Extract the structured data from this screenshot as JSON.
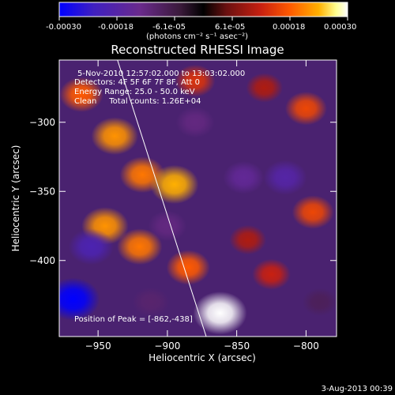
{
  "colorbar": {
    "tick_labels": [
      "-0.00030",
      "-0.00018",
      "-6.1e-05",
      "6.1e-05",
      "0.00018",
      "0.00030"
    ],
    "unit_label": "(photons cm⁻² s⁻¹ asec⁻²)",
    "colors": [
      "#0000ff",
      "#4020c0",
      "#6a2a8c",
      "#3a1a3a",
      "#000000",
      "#6a1010",
      "#c82010",
      "#ff5a00",
      "#ffb000",
      "#ffff90",
      "#ffffff"
    ]
  },
  "chart_data": {
    "type": "heatmap",
    "title": "Reconstructed RHESSI Image",
    "xlabel": "Heliocentric X (arcsec)",
    "ylabel": "Heliocentric Y (arcsec)",
    "xlim": [
      -978,
      -778
    ],
    "ylim": [
      -455,
      -255
    ],
    "x_ticks": [
      -950,
      -900,
      -850,
      -800
    ],
    "y_ticks": [
      -300,
      -350,
      -400
    ],
    "value_range": [
      -0.0003,
      0.0003
    ],
    "annotations": [
      "5-Nov-2010 12:57:02.000 to 13:03:02.000",
      "Detectors: 4F 5F 6F 7F 8F, Att 0",
      "Energy Range: 25.0 - 50.0 keV",
      "Clean     Total counts: 1.26E+04"
    ],
    "peak_label": "Position of Peak = [-862,-438]",
    "peak": {
      "x": -862,
      "y": -438
    },
    "limb_line": [
      [
        -936,
        -255
      ],
      [
        -872,
        -455
      ]
    ],
    "sources": [
      {
        "x": -962,
        "y": -280,
        "value": 0.00018
      },
      {
        "x": -938,
        "y": -310,
        "value": 0.00022
      },
      {
        "x": -918,
        "y": -338,
        "value": 0.0002
      },
      {
        "x": -895,
        "y": -345,
        "value": 0.00024
      },
      {
        "x": -945,
        "y": -375,
        "value": 0.00022
      },
      {
        "x": -920,
        "y": -390,
        "value": 0.0002
      },
      {
        "x": -885,
        "y": -405,
        "value": 0.00018
      },
      {
        "x": -862,
        "y": -438,
        "value": 0.0003
      },
      {
        "x": -842,
        "y": -385,
        "value": 0.0001
      },
      {
        "x": -825,
        "y": -410,
        "value": 0.00012
      },
      {
        "x": -800,
        "y": -290,
        "value": 0.00016
      },
      {
        "x": -795,
        "y": -365,
        "value": 0.00016
      },
      {
        "x": -830,
        "y": -275,
        "value": 0.0001
      },
      {
        "x": -880,
        "y": -270,
        "value": 0.00014
      },
      {
        "x": -968,
        "y": -428,
        "value": -0.0003
      },
      {
        "x": -955,
        "y": -390,
        "value": -0.0002
      },
      {
        "x": -912,
        "y": -430,
        "value": -0.0001
      },
      {
        "x": -845,
        "y": -340,
        "value": -0.00015
      },
      {
        "x": -815,
        "y": -340,
        "value": -0.00018
      },
      {
        "x": -880,
        "y": -300,
        "value": -0.00012
      },
      {
        "x": -790,
        "y": -430,
        "value": -8e-05
      },
      {
        "x": -900,
        "y": -375,
        "value": -0.00012
      }
    ]
  },
  "footer": {
    "date": "3-Aug-2013 00:39"
  }
}
